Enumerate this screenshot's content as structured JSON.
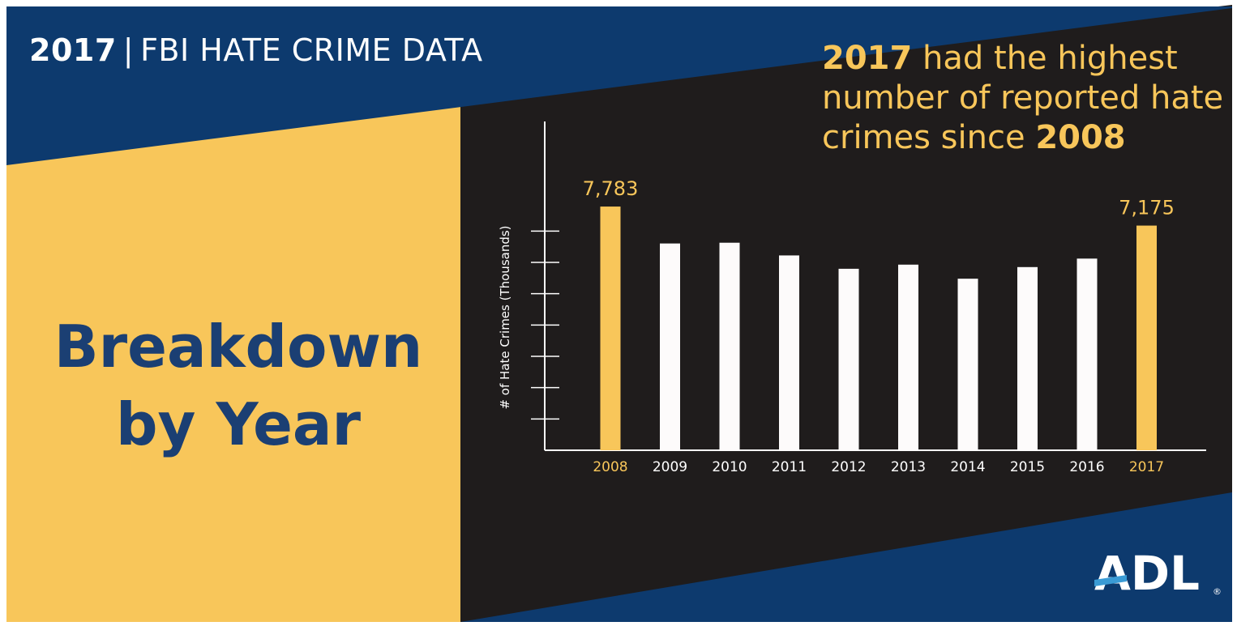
{
  "header": {
    "year": "2017",
    "separator": "|",
    "title": "FBI HATE CRIME DATA"
  },
  "left_panel": {
    "line1": "Breakdown",
    "line2": "by Year"
  },
  "callout": {
    "part1": "2017",
    "part2": " had the highest",
    "part3": "number of reported hate",
    "part4": "crimes since ",
    "part5": "2008"
  },
  "logo": {
    "text": "ADL",
    "mark": "®"
  },
  "colors": {
    "navy": "#0d3a6e",
    "gold": "#f8c65a",
    "black": "#1f1c1c",
    "bar_white": "#fdfbfb",
    "breakdown_text": "#1b3f73"
  },
  "chart_data": {
    "type": "bar",
    "categories": [
      "2008",
      "2009",
      "2010",
      "2011",
      "2012",
      "2013",
      "2014",
      "2015",
      "2016",
      "2017"
    ],
    "values": [
      7783,
      6604,
      6628,
      6222,
      5796,
      5928,
      5479,
      5850,
      6121,
      7175
    ],
    "highlighted": [
      "2008",
      "2017"
    ],
    "data_labels": {
      "2008": "7,783",
      "2017": "7,175"
    },
    "ylabel": "# of Hate Crimes (Thousands)",
    "xlabel": "",
    "ylim": [
      0,
      10500
    ],
    "yticks": [
      1000,
      2000,
      3000,
      4000,
      5000,
      6000,
      7000
    ],
    "grid": false
  }
}
